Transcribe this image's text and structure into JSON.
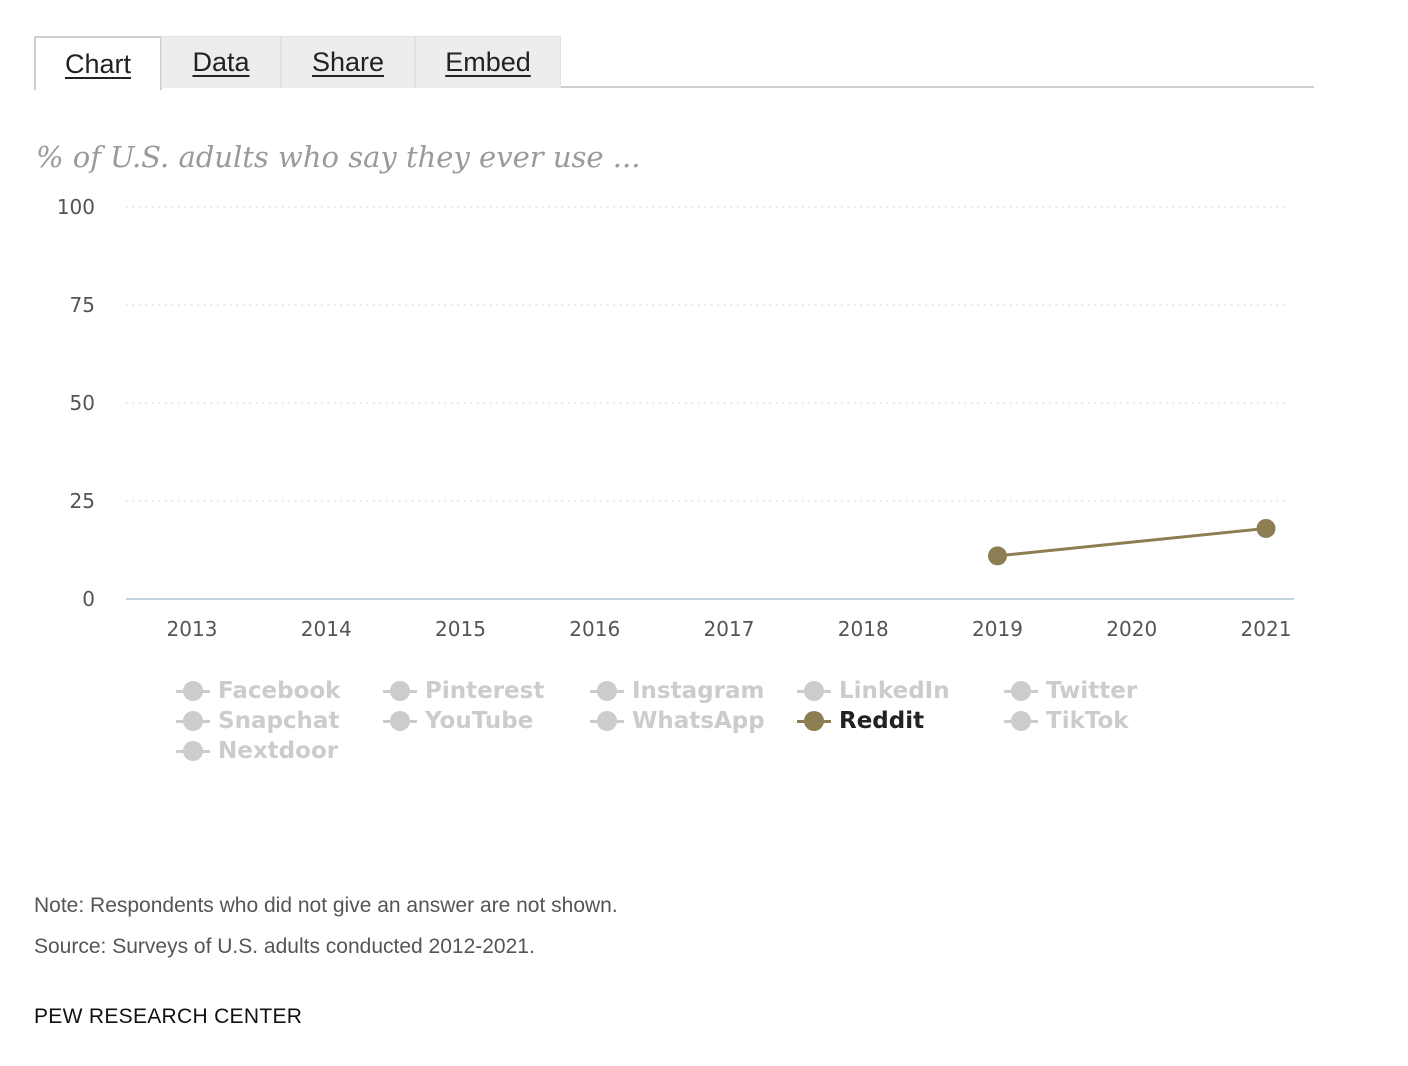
{
  "tabs": [
    {
      "label": "Chart",
      "active": true
    },
    {
      "label": "Data",
      "active": false
    },
    {
      "label": "Share",
      "active": false
    },
    {
      "label": "Embed",
      "active": false
    }
  ],
  "subtitle": "% of U.S. adults who say they ever use ...",
  "chart_data": {
    "type": "line",
    "title": "",
    "subtitle": "% of U.S. adults who say they ever use ...",
    "xlabel": "",
    "ylabel": "",
    "x": [
      "2013",
      "2014",
      "2015",
      "2016",
      "2017",
      "2018",
      "2019",
      "2020",
      "2021"
    ],
    "ylim": [
      0,
      100
    ],
    "yticks": [
      0,
      25,
      50,
      75,
      100
    ],
    "grid": true,
    "highlight_color": "#8c7e52",
    "muted_color": "#cccccc",
    "series": [
      {
        "name": "Reddit",
        "active": true,
        "points": [
          {
            "x": 2019,
            "y": 11
          },
          {
            "x": 2021,
            "y": 18
          }
        ]
      }
    ],
    "legend": [
      {
        "name": "Facebook",
        "active": false
      },
      {
        "name": "Pinterest",
        "active": false
      },
      {
        "name": "Instagram",
        "active": false
      },
      {
        "name": "LinkedIn",
        "active": false
      },
      {
        "name": "Twitter",
        "active": false
      },
      {
        "name": "Snapchat",
        "active": false
      },
      {
        "name": "YouTube",
        "active": false
      },
      {
        "name": "WhatsApp",
        "active": false
      },
      {
        "name": "Reddit",
        "active": true
      },
      {
        "name": "TikTok",
        "active": false
      },
      {
        "name": "Nextdoor",
        "active": false
      }
    ],
    "legend_placement": "bottom"
  },
  "note": "Note: Respondents who did not give an answer are not shown.",
  "source": "Source: Surveys of U.S. adults conducted 2012-2021.",
  "brand": "PEW RESEARCH CENTER"
}
